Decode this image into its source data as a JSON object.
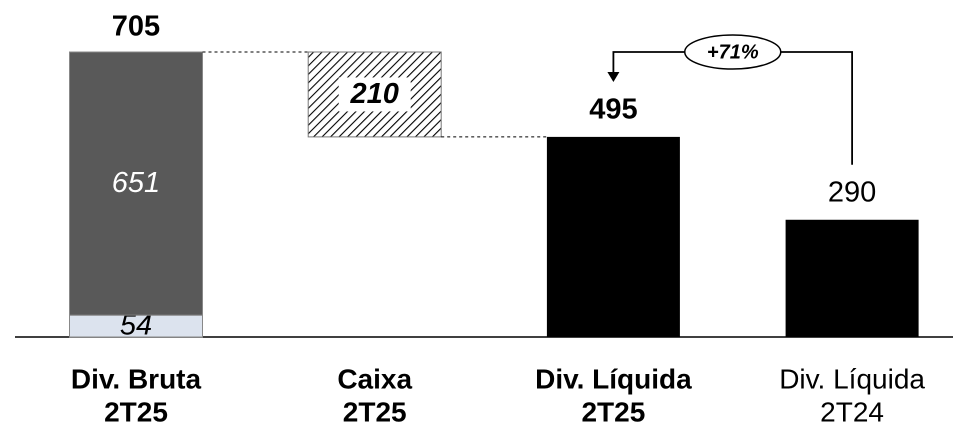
{
  "chart_data": {
    "type": "waterfall",
    "categories": [
      [
        "Div. Bruta",
        "2T25"
      ],
      [
        "Caixa",
        "2T25"
      ],
      [
        "Div. Líquida",
        "2T25"
      ],
      [
        "Div. Líquida",
        "2T24"
      ]
    ],
    "category_bold": [
      true,
      true,
      true,
      false
    ],
    "bars": [
      {
        "kind": "stack",
        "segments": [
          {
            "value": 54,
            "color": "#dce3ee"
          },
          {
            "value": 651,
            "color": "#595959"
          }
        ],
        "total": 705
      },
      {
        "kind": "decrease",
        "segments": [
          {
            "value": 210,
            "color": "#000000",
            "hatched": true
          }
        ]
      },
      {
        "kind": "total",
        "segments": [
          {
            "value": 495,
            "color": "#000000"
          }
        ]
      },
      {
        "kind": "plain",
        "segments": [
          {
            "value": 290,
            "color": "#000000"
          }
        ]
      }
    ],
    "annotation": {
      "text": "+71%",
      "from": 3,
      "to": 2
    }
  }
}
